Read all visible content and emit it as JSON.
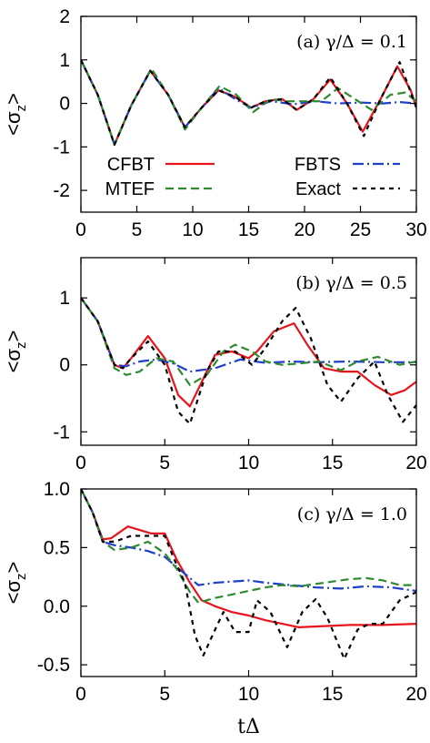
{
  "series_styles": {
    "CFBT": {
      "color": "#e8141b",
      "dash": ""
    },
    "MTEF": {
      "color": "#2f8a2f",
      "dash": "9,5"
    },
    "FBTS": {
      "color": "#1f3fc8",
      "dash": "12,4,2,4"
    },
    "Exact": {
      "color": "#000000",
      "dash": "5,5"
    }
  },
  "chart_data": [
    {
      "type": "line",
      "annotation": "(a) γ/Δ = 0.1",
      "ylabel": "<σz>",
      "xlabel": "",
      "xlim": [
        0,
        30
      ],
      "ylim": [
        -2.5,
        2
      ],
      "xticks": [
        "0",
        "5",
        "10",
        "15",
        "20",
        "25",
        "30"
      ],
      "yticks": [
        "-2",
        "-1",
        "0",
        "1",
        "2"
      ],
      "legend": {
        "entries": [
          "CFBT",
          "FBTS",
          "MTEF",
          "Exact"
        ],
        "placement": "lower-left"
      },
      "series": [
        {
          "name": "CFBT",
          "x": [
            0,
            1.5,
            3,
            4.5,
            6.2,
            7.8,
            9.3,
            10.8,
            12.3,
            13.8,
            15.2,
            16.5,
            18,
            19.3,
            20.8,
            22.3,
            23.8,
            25.2,
            26.8,
            28.3,
            29.5,
            30
          ],
          "y": [
            1,
            0.2,
            -0.95,
            -0.05,
            0.75,
            0.2,
            -0.55,
            -0.1,
            0.3,
            0.15,
            -0.1,
            0.05,
            0.1,
            -0.15,
            0.1,
            0.55,
            0,
            -0.65,
            0.1,
            0.85,
            0.3,
            -0.1
          ]
        },
        {
          "name": "FBTS",
          "x": [
            0,
            1.5,
            3,
            4.5,
            6.2,
            7.8,
            9.3,
            10.8,
            12.3,
            13.8,
            15.2,
            17,
            19,
            21,
            23,
            25,
            27,
            28.5,
            30
          ],
          "y": [
            1,
            0.2,
            -0.95,
            -0.05,
            0.75,
            0.2,
            -0.55,
            -0.1,
            0.35,
            0.1,
            -0.1,
            0.05,
            -0.02,
            0.05,
            0,
            0.02,
            0,
            0.03,
            0
          ]
        },
        {
          "name": "MTEF",
          "x": [
            0,
            1.5,
            3,
            4.5,
            6.3,
            7.8,
            9.3,
            10.8,
            12.4,
            13.9,
            15.4,
            17,
            18.5,
            20,
            21.5,
            23,
            24.5,
            26,
            27.7,
            29,
            30
          ],
          "y": [
            1,
            0.2,
            -0.95,
            -0.05,
            0.8,
            0.2,
            -0.6,
            -0.1,
            0.4,
            0.2,
            -0.2,
            0.1,
            0.05,
            0.05,
            0.05,
            0.35,
            0.1,
            -0.15,
            0.2,
            0.25,
            0.05
          ]
        },
        {
          "name": "Exact",
          "x": [
            0,
            1.5,
            3,
            4.5,
            6.2,
            7.8,
            9.3,
            10.8,
            12.3,
            13.8,
            15.2,
            16.5,
            18,
            19.3,
            20.8,
            22.3,
            23.8,
            25.3,
            26.8,
            28.5,
            30
          ],
          "y": [
            1,
            0.2,
            -0.95,
            -0.05,
            0.75,
            0.2,
            -0.55,
            -0.1,
            0.3,
            0.15,
            -0.1,
            0.05,
            0.1,
            -0.15,
            0.1,
            0.6,
            0,
            -0.75,
            0.1,
            0.95,
            -0.1
          ]
        }
      ]
    },
    {
      "type": "line",
      "annotation": "(b) γ/Δ = 0.5",
      "ylabel": "<σz>",
      "xlabel": "",
      "xlim": [
        0,
        20
      ],
      "ylim": [
        -1.2,
        1.6
      ],
      "xticks": [
        "0",
        "5",
        "10",
        "15",
        "20"
      ],
      "yticks": [
        "-1",
        "0",
        "1"
      ],
      "series": [
        {
          "name": "CFBT",
          "x": [
            0,
            1,
            2,
            2.5,
            3,
            4,
            5,
            5.8,
            6.5,
            7.5,
            8,
            9,
            10,
            10.5,
            11.5,
            12.7,
            13.5,
            14.5,
            15.5,
            16.5,
            17.5,
            18.5,
            19.3,
            20
          ],
          "y": [
            1,
            0.65,
            0,
            -0.05,
            0.1,
            0.43,
            0.1,
            -0.45,
            -0.62,
            -0.1,
            0.15,
            0.2,
            0.1,
            0.2,
            0.5,
            0.62,
            0.3,
            -0.05,
            -0.1,
            -0.1,
            -0.3,
            -0.45,
            -0.38,
            -0.25
          ]
        },
        {
          "name": "FBTS",
          "x": [
            0,
            1,
            2,
            2.7,
            3.5,
            4.5,
            5.5,
            6.5,
            8,
            9.5,
            11,
            12.5,
            14,
            16,
            18,
            20
          ],
          "y": [
            1,
            0.65,
            0,
            -0.02,
            0.05,
            0.08,
            0.02,
            -0.1,
            -0.05,
            0.08,
            0.03,
            0.05,
            0.04,
            0.05,
            0.04,
            0.04
          ]
        },
        {
          "name": "MTEF",
          "x": [
            0,
            1,
            2,
            2.7,
            3.5,
            4.5,
            5.5,
            6.5,
            7.5,
            8.5,
            9.2,
            10.2,
            11,
            12,
            13,
            14.2,
            15.5,
            16.5,
            17.7,
            19,
            20
          ],
          "y": [
            1,
            0.65,
            -0.05,
            -0.15,
            -0.1,
            0.1,
            0.05,
            -0.3,
            -0.15,
            0.2,
            0.3,
            0.2,
            0.05,
            0,
            0.02,
            0.05,
            -0.08,
            0.05,
            0.12,
            0,
            0.05
          ]
        },
        {
          "name": "Exact",
          "x": [
            0,
            1,
            2,
            2.5,
            3,
            4,
            5,
            5.8,
            6.5,
            7.5,
            8.2,
            9.2,
            10.2,
            11,
            12,
            12.8,
            13.7,
            14.7,
            15.5,
            16.5,
            17.5,
            18.3,
            19.2,
            20
          ],
          "y": [
            1,
            0.65,
            0,
            -0.05,
            0.1,
            0.35,
            0,
            -0.7,
            -0.88,
            -0.1,
            0.2,
            0.2,
            0,
            0.25,
            0.65,
            0.85,
            0.4,
            -0.3,
            -0.55,
            -0.2,
            0.05,
            -0.45,
            -0.85,
            -0.6
          ]
        }
      ]
    },
    {
      "type": "line",
      "annotation": "(c) γ/Δ = 1.0",
      "ylabel": "<σz>",
      "xlabel": "tΔ",
      "xlim": [
        0,
        20
      ],
      "ylim": [
        -0.6,
        1.0
      ],
      "xticks": [
        "0",
        "5",
        "10",
        "15",
        "20"
      ],
      "yticks": [
        "-0.5",
        "0.0",
        "0.5",
        "1.0"
      ],
      "series": [
        {
          "name": "CFBT",
          "x": [
            0,
            0.7,
            1.3,
            1.8,
            2.8,
            3.5,
            4.2,
            5,
            5.7,
            6.5,
            7.2,
            8,
            9,
            10,
            11,
            12,
            13,
            14.5,
            16,
            18,
            20
          ],
          "y": [
            1,
            0.8,
            0.57,
            0.58,
            0.68,
            0.65,
            0.62,
            0.62,
            0.4,
            0.2,
            0.05,
            0,
            -0.05,
            -0.08,
            -0.12,
            -0.15,
            -0.18,
            -0.17,
            -0.16,
            -0.16,
            -0.15
          ]
        },
        {
          "name": "FBTS",
          "x": [
            0,
            0.7,
            1.3,
            2,
            3,
            4,
            5,
            6,
            7,
            8,
            9,
            10,
            11,
            12.5,
            14,
            15.5,
            17,
            18.5,
            20
          ],
          "y": [
            1,
            0.8,
            0.55,
            0.52,
            0.5,
            0.47,
            0.42,
            0.3,
            0.18,
            0.2,
            0.21,
            0.22,
            0.2,
            0.18,
            0.16,
            0.15,
            0.17,
            0.16,
            0.13
          ]
        },
        {
          "name": "MTEF",
          "x": [
            0,
            0.7,
            1.3,
            2,
            3,
            4,
            5,
            5.7,
            6.5,
            7,
            8,
            9,
            10,
            11,
            12,
            13,
            14,
            15,
            16,
            17,
            18,
            19,
            20
          ],
          "y": [
            1,
            0.8,
            0.55,
            0.48,
            0.5,
            0.55,
            0.45,
            0.32,
            0.12,
            0.03,
            0.07,
            0.1,
            0.13,
            0.16,
            0.18,
            0.17,
            0.19,
            0.21,
            0.23,
            0.24,
            0.22,
            0.18,
            0.18
          ]
        },
        {
          "name": "Exact",
          "x": [
            0,
            0.7,
            1.3,
            2,
            3,
            4,
            5,
            5.5,
            6.2,
            6.8,
            7.3,
            8,
            8.5,
            9.2,
            10,
            10.5,
            11.3,
            12.3,
            13.2,
            14,
            14.7,
            15.7,
            16.5,
            17.2,
            18,
            19,
            20
          ],
          "y": [
            1,
            0.8,
            0.55,
            0.55,
            0.6,
            0.6,
            0.6,
            0.42,
            0.2,
            -0.25,
            -0.42,
            -0.2,
            -0.05,
            -0.22,
            -0.22,
            0.05,
            -0.05,
            -0.35,
            -0.05,
            0.06,
            -0.1,
            -0.45,
            -0.2,
            -0.15,
            -0.15,
            0.05,
            0.12
          ]
        }
      ]
    }
  ]
}
